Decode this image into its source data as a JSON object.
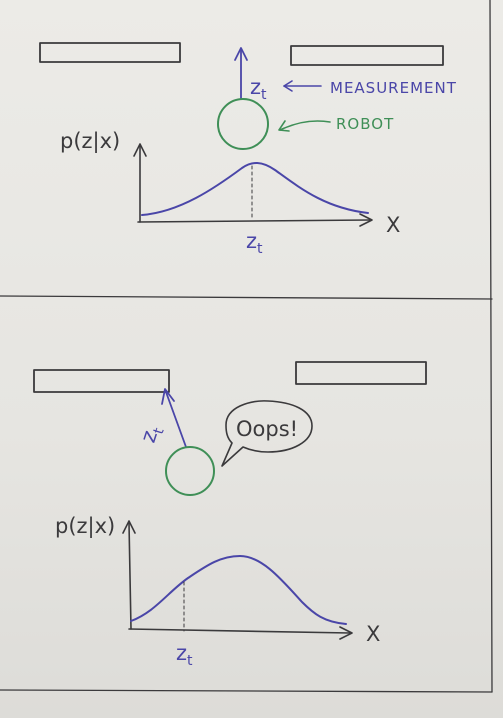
{
  "top_panel": {
    "measurement_label": "MEASUREMENT",
    "robot_label": "ROBOT",
    "z_label": "z",
    "z_sub": "t",
    "y_axis_label": "p(z|x)",
    "x_axis_label": "X",
    "tick_z": "z",
    "tick_sub": "t"
  },
  "bottom_panel": {
    "speech_text": "Oops!",
    "z_label": "z",
    "z_sub": "t",
    "y_axis_label": "p(z|x)",
    "x_axis_label": "X",
    "tick_z": "z",
    "tick_sub": "t"
  },
  "colors": {
    "ink": "#3b3a3c",
    "blue": "#4a46a8",
    "green": "#3f8f57",
    "paper": "#e9e8e4"
  }
}
